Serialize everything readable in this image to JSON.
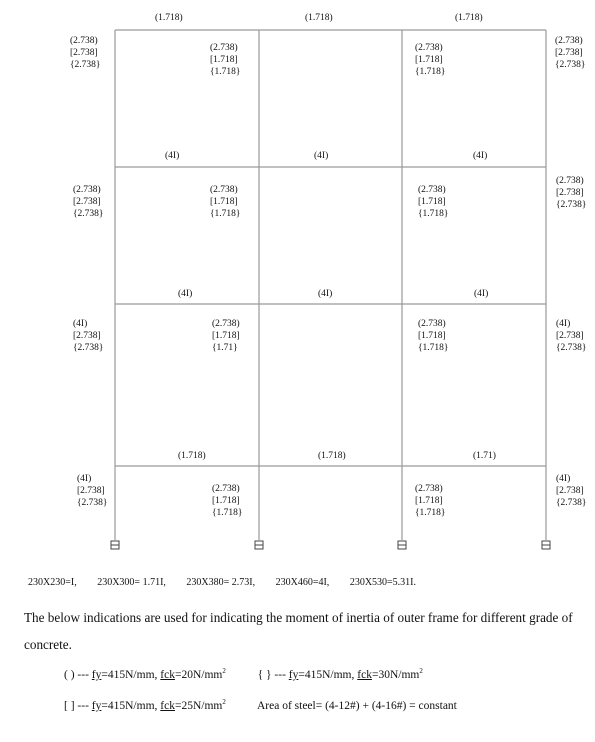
{
  "frame": {
    "beam_labels": [
      {
        "id": "top-1",
        "text": "(1.718)"
      },
      {
        "id": "top-2",
        "text": "(1.718)"
      },
      {
        "id": "top-3",
        "text": "(1.718)"
      },
      {
        "id": "f3-1",
        "text": "(4I)"
      },
      {
        "id": "f3-2",
        "text": "(4I)"
      },
      {
        "id": "f3-3",
        "text": "(4I)"
      },
      {
        "id": "f2-1",
        "text": "(4I)"
      },
      {
        "id": "f2-2",
        "text": "(4I)"
      },
      {
        "id": "f2-3",
        "text": "(4I)"
      },
      {
        "id": "f1-1",
        "text": "(1.718)"
      },
      {
        "id": "f1-2",
        "text": "(1.718)"
      },
      {
        "id": "f1-3",
        "text": "(1.71)"
      }
    ],
    "column_labels": [
      {
        "id": "s4-c1",
        "lines": [
          "(2.738)",
          "[2.738]",
          "{2.738}"
        ]
      },
      {
        "id": "s4-c2",
        "lines": [
          "(2.738)",
          "[1.718]",
          "{1.718}"
        ]
      },
      {
        "id": "s4-c3",
        "lines": [
          "(2.738)",
          "[1.718]",
          "{1.718}"
        ]
      },
      {
        "id": "s4-c4",
        "lines": [
          "(2.738)",
          "[2.738]",
          "{2.738}"
        ]
      },
      {
        "id": "s3-c1",
        "lines": [
          "(2.738)",
          "[2.738]",
          "{2.738}"
        ]
      },
      {
        "id": "s3-c2",
        "lines": [
          "(2.738)",
          "[1.718]",
          "{1.718}"
        ]
      },
      {
        "id": "s3-c3",
        "lines": [
          "(2.738)",
          "[1.718]",
          "{1.718}"
        ]
      },
      {
        "id": "s3-c4",
        "lines": [
          "(2.738)",
          "[2.738]",
          "{2.738}"
        ]
      },
      {
        "id": "s2-c1",
        "lines": [
          "(4I)",
          "[2.738]",
          "{2.738}"
        ]
      },
      {
        "id": "s2-c2",
        "lines": [
          "(2.738)",
          "[1.718]",
          "{1.71}"
        ]
      },
      {
        "id": "s2-c3",
        "lines": [
          "(2.738)",
          "[1.718]",
          "{1.718}"
        ]
      },
      {
        "id": "s2-c4",
        "lines": [
          "(4I)",
          "[2.738]",
          "{2.738}"
        ]
      },
      {
        "id": "s1-c1",
        "lines": [
          "(4I)",
          "[2.738]",
          "{2.738}"
        ]
      },
      {
        "id": "s1-c2",
        "lines": [
          "(2.738)",
          "[1.718]",
          "{1.718}"
        ]
      },
      {
        "id": "s1-c3",
        "lines": [
          "(2.738)",
          "[1.718]",
          "{1.718}"
        ]
      },
      {
        "id": "s1-c4",
        "lines": [
          "(4I)",
          "[2.738]",
          "{2.738}"
        ]
      }
    ]
  },
  "section_sizes": [
    "230X230=I,",
    "230X300= 1.71I,",
    "230X380= 2.73I,",
    "230X460=4I,",
    "230X530=5.31I."
  ],
  "description": "The below indications are used for indicating the moment of inertia of outer frame for different grade of concrete.",
  "legend": [
    {
      "bracket": "( )",
      "dash": "---",
      "fy_label": "fy",
      "fy_value": "=415N/mm",
      "fck_label": "fck",
      "fck_value": "=20N/mm",
      "exp": "2"
    },
    {
      "bracket": "{ }",
      "dash": "---",
      "fy_label": "fy",
      "fy_value": "=415N/mm",
      "fck_label": "fck",
      "fck_value": "=30N/mm",
      "exp": "2"
    },
    {
      "bracket": "[ ]",
      "dash": "---",
      "fy_label": "fy",
      "fy_value": "=415N/mm",
      "fck_label": "fck",
      "fck_value": "=25N/mm",
      "exp": "2"
    }
  ],
  "steel_note": "Area of steel= (4-12#) + (4-16#) = constant"
}
